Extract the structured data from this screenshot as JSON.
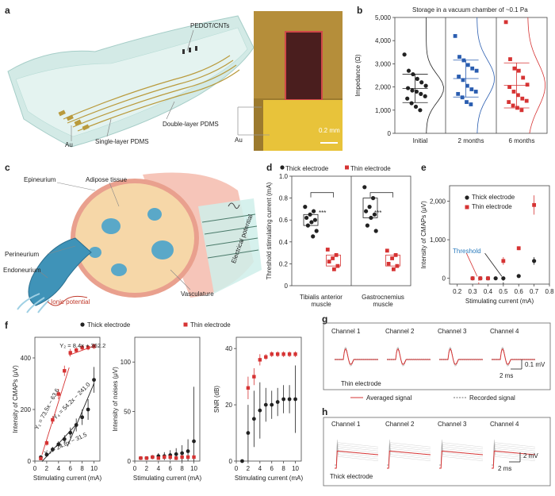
{
  "panels": {
    "a": {
      "label": "a",
      "labels": {
        "pedot": "PEDOT/CNTs",
        "double": "Double-layer PDMS",
        "single": "Single-layer PDMS",
        "au1": "Au",
        "au2": "Au",
        "scale": "0.2 mm"
      }
    },
    "b": {
      "label": "b",
      "title": "Storage in a vacuum chamber of ~0.1 Pa",
      "ylabel": "Impedance (Ω)",
      "yticks": [
        "0",
        "1,000",
        "2,000",
        "3,000",
        "4,000",
        "5,000"
      ],
      "xticks": [
        "Initial",
        "2 months",
        "6 months"
      ]
    },
    "c": {
      "label": "c",
      "labels": {
        "epineurium": "Epineurium",
        "adipose": "Adipose tissue",
        "perineurium": "Perineurium",
        "endoneurium": "Endoneurium",
        "ionic": "Ionic potential",
        "vasculature": "Vasculature",
        "electrical": "Electrical potential"
      }
    },
    "d": {
      "label": "d",
      "legend_thick": "Thick electrode",
      "legend_thin": "Thin electrode",
      "ylabel": "Threshold stimulating current (mA)",
      "yticks": [
        "0",
        "0.2",
        "0.4",
        "0.6",
        "0.8",
        "1.0"
      ],
      "sig1": "***",
      "sig2": "***",
      "x1": "Tibialis anterior",
      "x1b": "muscle",
      "x2": "Gastrocnemius",
      "x2b": "muscle"
    },
    "e": {
      "label": "e",
      "legend_thick": "Thick electrode",
      "legend_thin": "Thin electrode",
      "ylabel": "Intensity of CMAPs (μV)",
      "xlabel": "Stimulating current (mA)",
      "yticks": [
        "0",
        "1,000",
        "2,000"
      ],
      "xticks": [
        "0.2",
        "0.3",
        "0.4",
        "0.5",
        "0.6",
        "0.7",
        "0.8"
      ],
      "threshold": "Threshold"
    },
    "f": {
      "label": "f",
      "legend_thick": "Thick electrode",
      "legend_thin": "Thin electrode",
      "xlabel": "Stimulating current (mA)",
      "ylabel1": "Intensity of CMAPs (μV)",
      "ylabel2": "Intensity of noises (μV)",
      "ylabel3": "SNR (dB)",
      "yticks1": [
        "0",
        "200",
        "400"
      ],
      "yticks2": [
        "0",
        "50",
        "100"
      ],
      "yticks3": [
        "0",
        "20",
        "40"
      ],
      "xticks": [
        "0",
        "2",
        "4",
        "6",
        "8",
        "10"
      ],
      "eq1": "Y₂ = 8.4x + 362.2",
      "eq2": "Y₁ = 73.5x − 63.6",
      "eq3": "Y₄ = 54.2x − 241.0",
      "eq4": "Y₃ = 24.8x − 31.5"
    },
    "g": {
      "label": "g",
      "channels": [
        "Channel 1",
        "Channel 2",
        "Channel 3",
        "Channel 4"
      ],
      "scale_v": "0.1 mV",
      "scale_t": "2 ms",
      "tag": "Thin electrode",
      "legend_avg": "Averaged signal",
      "legend_rec": "Recorded signal"
    },
    "h": {
      "label": "h",
      "channels": [
        "Channel 1",
        "Channel 2",
        "Channel 3",
        "Channel 4"
      ],
      "scale_v": "2 mV",
      "scale_t": "2 ms",
      "tag": "Thick electrode"
    }
  },
  "chart_data": [
    {
      "id": "b",
      "type": "scatter",
      "title": "Storage in a vacuum chamber of ~0.1 Pa",
      "ylabel": "Impedance (Ω)",
      "ylim": [
        0,
        5000
      ],
      "categories": [
        "Initial",
        "2 months",
        "6 months"
      ],
      "colors": [
        "#222222",
        "#2a5db0",
        "#d63333"
      ],
      "series": [
        {
          "values": [
            3400,
            2700,
            2550,
            2350,
            2200,
            2050,
            1950,
            1850,
            1800,
            1700,
            1600,
            1500,
            1300,
            1150,
            1000
          ]
        },
        {
          "values": [
            4200,
            3300,
            3150,
            2950,
            2800,
            2700,
            2450,
            2300,
            2050,
            1900,
            1800,
            1700,
            1550,
            1350,
            1250
          ]
        },
        {
          "values": [
            4800,
            3200,
            2800,
            2700,
            2400,
            2100,
            2000,
            1800,
            1650,
            1500,
            1400,
            1350,
            1200,
            1100,
            1000
          ]
        }
      ]
    },
    {
      "id": "d",
      "type": "scatter",
      "ylabel": "Threshold stimulating current (mA)",
      "ylim": [
        0,
        1.0
      ],
      "groups": [
        "Tibialis anterior muscle",
        "Gastrocnemius muscle"
      ],
      "series": [
        {
          "name": "Thick electrode",
          "values": [
            [
              0.72,
              0.68,
              0.65,
              0.62,
              0.6,
              0.58,
              0.55,
              0.5,
              0.45
            ],
            [
              0.9,
              0.8,
              0.72,
              0.68,
              0.65,
              0.62,
              0.55,
              0.5
            ]
          ]
        },
        {
          "name": "Thin electrode",
          "values": [
            [
              0.33,
              0.28,
              0.25,
              0.22,
              0.18,
              0.15
            ],
            [
              0.32,
              0.28,
              0.25,
              0.2,
              0.18,
              0.15
            ]
          ]
        }
      ]
    },
    {
      "id": "e",
      "type": "scatter",
      "xlabel": "Stimulating current (mA)",
      "ylabel": "Intensity of CMAPs (μV)",
      "xlim": [
        0.15,
        0.8
      ],
      "ylim": [
        -150,
        2400
      ],
      "series": [
        {
          "name": "Thick electrode",
          "x": [
            0.3,
            0.35,
            0.4,
            0.45,
            0.5,
            0.6,
            0.7
          ],
          "y": [
            0,
            0,
            0,
            0,
            0,
            60,
            450
          ],
          "err": [
            0,
            0,
            0,
            0,
            0,
            30,
            100
          ]
        },
        {
          "name": "Thin electrode",
          "x": [
            0.3,
            0.35,
            0.4,
            0.5,
            0.6,
            0.7
          ],
          "y": [
            0,
            0,
            0,
            450,
            780,
            1900
          ],
          "err": [
            0,
            0,
            0,
            100,
            50,
            250
          ]
        }
      ]
    },
    {
      "id": "f1",
      "type": "scatter",
      "xlabel": "Stimulating current (mA)",
      "ylabel": "Intensity of CMAPs (μV)",
      "xlim": [
        0,
        11
      ],
      "ylim": [
        0,
        480
      ],
      "series": [
        {
          "name": "Thick electrode",
          "x": [
            1,
            2,
            3,
            4,
            5,
            6,
            7,
            8,
            9,
            10
          ],
          "y": [
            15,
            25,
            45,
            65,
            85,
            110,
            140,
            170,
            200,
            315
          ],
          "err": [
            5,
            8,
            10,
            12,
            15,
            20,
            25,
            30,
            40,
            50
          ]
        },
        {
          "name": "Thin electrode",
          "x": [
            1,
            2,
            3,
            4,
            5,
            6,
            7,
            8,
            9,
            10
          ],
          "y": [
            10,
            70,
            160,
            260,
            350,
            420,
            430,
            440,
            440,
            445
          ],
          "err": [
            5,
            10,
            15,
            20,
            20,
            15,
            10,
            10,
            10,
            10
          ]
        }
      ]
    },
    {
      "id": "f2",
      "type": "scatter",
      "xlabel": "Stimulating current (mA)",
      "ylabel": "Intensity of noises (μV)",
      "xlim": [
        0,
        11
      ],
      "ylim": [
        0,
        125
      ],
      "series": [
        {
          "name": "Thick electrode",
          "x": [
            1,
            2,
            3,
            4,
            5,
            6,
            7,
            8,
            9,
            10
          ],
          "y": [
            3,
            3,
            4,
            5,
            5,
            6,
            7,
            8,
            10,
            20
          ],
          "err": [
            1,
            1,
            2,
            3,
            4,
            5,
            6,
            8,
            12,
            55
          ]
        },
        {
          "name": "Thin electrode",
          "x": [
            1,
            2,
            3,
            4,
            5,
            6,
            7,
            8,
            9,
            10
          ],
          "y": [
            3,
            3,
            4,
            3,
            4,
            4,
            3,
            4,
            4,
            4
          ],
          "err": [
            0,
            0,
            1,
            1,
            1,
            1,
            1,
            1,
            1,
            1
          ]
        }
      ]
    },
    {
      "id": "f3",
      "type": "scatter",
      "xlabel": "Stimulating current (mA)",
      "ylabel": "SNR (dB)",
      "xlim": [
        0,
        11
      ],
      "ylim": [
        0,
        44
      ],
      "series": [
        {
          "name": "Thick electrode",
          "x": [
            1,
            2,
            3,
            4,
            5,
            6,
            7,
            8,
            9,
            10
          ],
          "y": [
            0,
            10,
            15,
            18,
            20,
            20,
            21,
            22,
            22,
            22
          ],
          "err": [
            0,
            10,
            10,
            10,
            6,
            5,
            5,
            5,
            5,
            12
          ]
        },
        {
          "name": "Thin electrode",
          "x": [
            2,
            3,
            4,
            5,
            6,
            7,
            8,
            9,
            10
          ],
          "y": [
            26,
            30,
            36,
            37,
            38,
            38,
            38,
            38,
            38
          ],
          "err": [
            4,
            3,
            2,
            1,
            1,
            1,
            1,
            1,
            1
          ]
        }
      ]
    }
  ]
}
